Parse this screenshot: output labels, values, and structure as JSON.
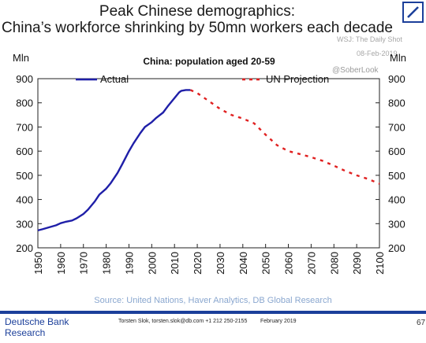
{
  "header": {
    "title_line1": "Peak Chinese demographics:",
    "title_line2": "China’s workforce shrinking by 50mn workers each decade"
  },
  "watermark": {
    "source": "WSJ: The Daily Shot",
    "date": "08-Feb-2019",
    "handle": "@SoberLook"
  },
  "chart_data": {
    "type": "line",
    "title": "China: population aged 20-59",
    "y_unit_left": "Mln",
    "y_unit_right": "Mln",
    "xlim": [
      1950,
      2100
    ],
    "ylim": [
      200,
      900
    ],
    "x_ticks": [
      "1950",
      "1960",
      "1970",
      "1980",
      "1990",
      "2000",
      "2010",
      "2020",
      "2030",
      "2040",
      "2050",
      "2060",
      "2070",
      "2080",
      "2090",
      "2100"
    ],
    "y_ticks": [
      "200",
      "300",
      "400",
      "500",
      "600",
      "700",
      "800",
      "900"
    ],
    "grid": false,
    "legend_position": "top",
    "series": [
      {
        "name": "Actual",
        "color": "#1f1fa8",
        "style": "solid",
        "x": [
          1950,
          1952,
          1955,
          1958,
          1960,
          1962,
          1965,
          1967,
          1970,
          1972,
          1975,
          1977,
          1980,
          1982,
          1985,
          1987,
          1990,
          1992,
          1995,
          1997,
          2000,
          2002,
          2005,
          2007,
          2010,
          2012,
          2013,
          2015,
          2017
        ],
        "y": [
          272,
          277,
          285,
          293,
          302,
          307,
          313,
          322,
          340,
          358,
          392,
          420,
          445,
          468,
          510,
          545,
          600,
          632,
          675,
          700,
          720,
          738,
          760,
          785,
          820,
          843,
          850,
          853,
          853
        ]
      },
      {
        "name": "UN Projection",
        "color": "#e02020",
        "style": "dashed",
        "x": [
          2017,
          2020,
          2025,
          2030,
          2035,
          2040,
          2045,
          2050,
          2055,
          2060,
          2065,
          2070,
          2075,
          2080,
          2085,
          2090,
          2095,
          2100
        ],
        "y": [
          853,
          840,
          808,
          775,
          750,
          735,
          715,
          668,
          625,
          600,
          588,
          575,
          560,
          540,
          518,
          500,
          485,
          465
        ]
      }
    ]
  },
  "source_line": "Source: United Nations, Haver Analytics, DB Global Research",
  "footer": {
    "brand_line1": "Deutsche Bank",
    "brand_line2": "Research",
    "contact": "Torsten Slok, torsten.slok@db.com  +1 212 250-2155",
    "date": "February 2019",
    "page": "67"
  },
  "colors": {
    "brand": "#1b3f9a",
    "source_text": "#8aa7cf"
  }
}
